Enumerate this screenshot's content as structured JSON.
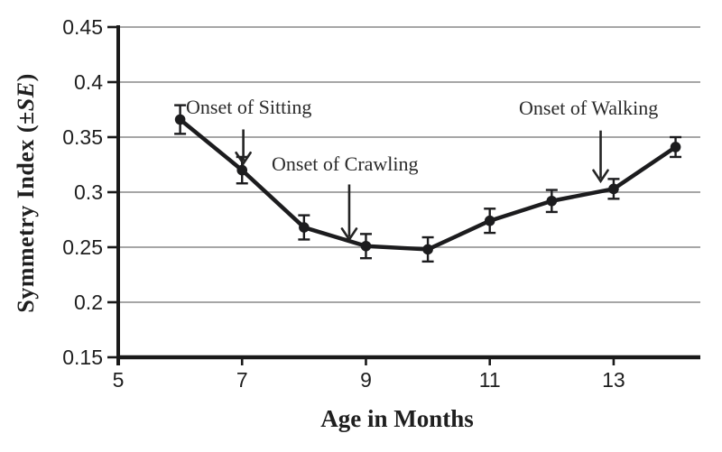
{
  "chart_data": {
    "type": "line",
    "title": "",
    "xlabel": "Age in Months",
    "ylabel": "Symmetry Index (±SE)",
    "ylabel_parts": {
      "prefix": "Symmetry Index (±",
      "italic": "SE",
      "suffix": ")"
    },
    "x": [
      6,
      7,
      8,
      9,
      10,
      11,
      12,
      13,
      14
    ],
    "series": [
      {
        "name": "Symmetry Index",
        "values": [
          0.366,
          0.32,
          0.268,
          0.251,
          0.248,
          0.274,
          0.292,
          0.303,
          0.341
        ],
        "se": [
          0.013,
          0.012,
          0.011,
          0.011,
          0.011,
          0.011,
          0.01,
          0.009,
          0.009
        ]
      }
    ],
    "xticks": [
      5,
      7,
      9,
      11,
      13
    ],
    "xtick_labels": [
      "5",
      "7",
      "9",
      "11",
      "13"
    ],
    "yticks": [
      0.15,
      0.2,
      0.25,
      0.3,
      0.35,
      0.4,
      0.45
    ],
    "ytick_labels": [
      "0.15",
      "0.2",
      "0.25",
      "0.3",
      "0.35",
      "0.4",
      "0.45"
    ],
    "xlim": [
      5,
      14.4
    ],
    "ylim": [
      0.15,
      0.45
    ],
    "grid": "horizontal",
    "legend": "none",
    "line_color": "#1c1c1e",
    "grid_color": "#999999",
    "axis_color": "#1a1a1a",
    "text_color": "#1f1f1f",
    "annotations": [
      {
        "label": "Onset of Sitting",
        "arrow": {
          "x": 7.02,
          "from": 0.357,
          "to": 0.326
        }
      },
      {
        "label": "Onset of Crawling",
        "arrow": {
          "x": 8.73,
          "from": 0.307,
          "to": 0.257
        }
      },
      {
        "label": "Onset of Walking",
        "arrow": {
          "x": 12.79,
          "from": 0.356,
          "to": 0.31
        }
      }
    ]
  }
}
